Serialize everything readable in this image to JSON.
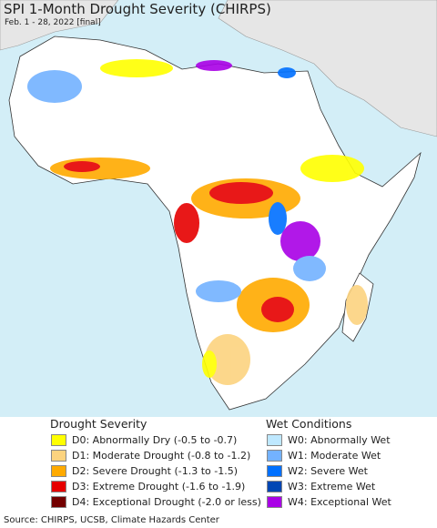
{
  "header": {
    "title": "SPI 1-Month Drought Severity (CHIRPS)",
    "subtitle": "Feb. 1 - 28, 2022 [final]"
  },
  "legend": {
    "drought": {
      "title": "Drought Severity",
      "items": [
        {
          "label": "D0: Abnormally Dry (-0.5 to -0.7)",
          "color": "#ffff00"
        },
        {
          "label": "D1: Moderate Drought (-0.8 to -1.2)",
          "color": "#fcd37f"
        },
        {
          "label": "D2: Severe Drought (-1.3 to -1.5)",
          "color": "#ffaa00"
        },
        {
          "label": "D3: Extreme Drought (-1.6 to -1.9)",
          "color": "#e60000"
        },
        {
          "label": "D4: Exceptional Drought (-2.0 or less)",
          "color": "#730000"
        }
      ]
    },
    "wet": {
      "title": "Wet Conditions",
      "items": [
        {
          "label": "W0: Abnormally Wet",
          "color": "#bee8ff"
        },
        {
          "label": "W1: Moderate Wet",
          "color": "#73b2ff"
        },
        {
          "label": "W2: Severe Wet",
          "color": "#0070ff"
        },
        {
          "label": "W3: Extreme Wet",
          "color": "#0046b4"
        },
        {
          "label": "W4: Exceptional Wet",
          "color": "#a900e6"
        }
      ]
    }
  },
  "footer": {
    "source": "Source: CHIRPS, UCSB, Climate Hazards Center"
  }
}
